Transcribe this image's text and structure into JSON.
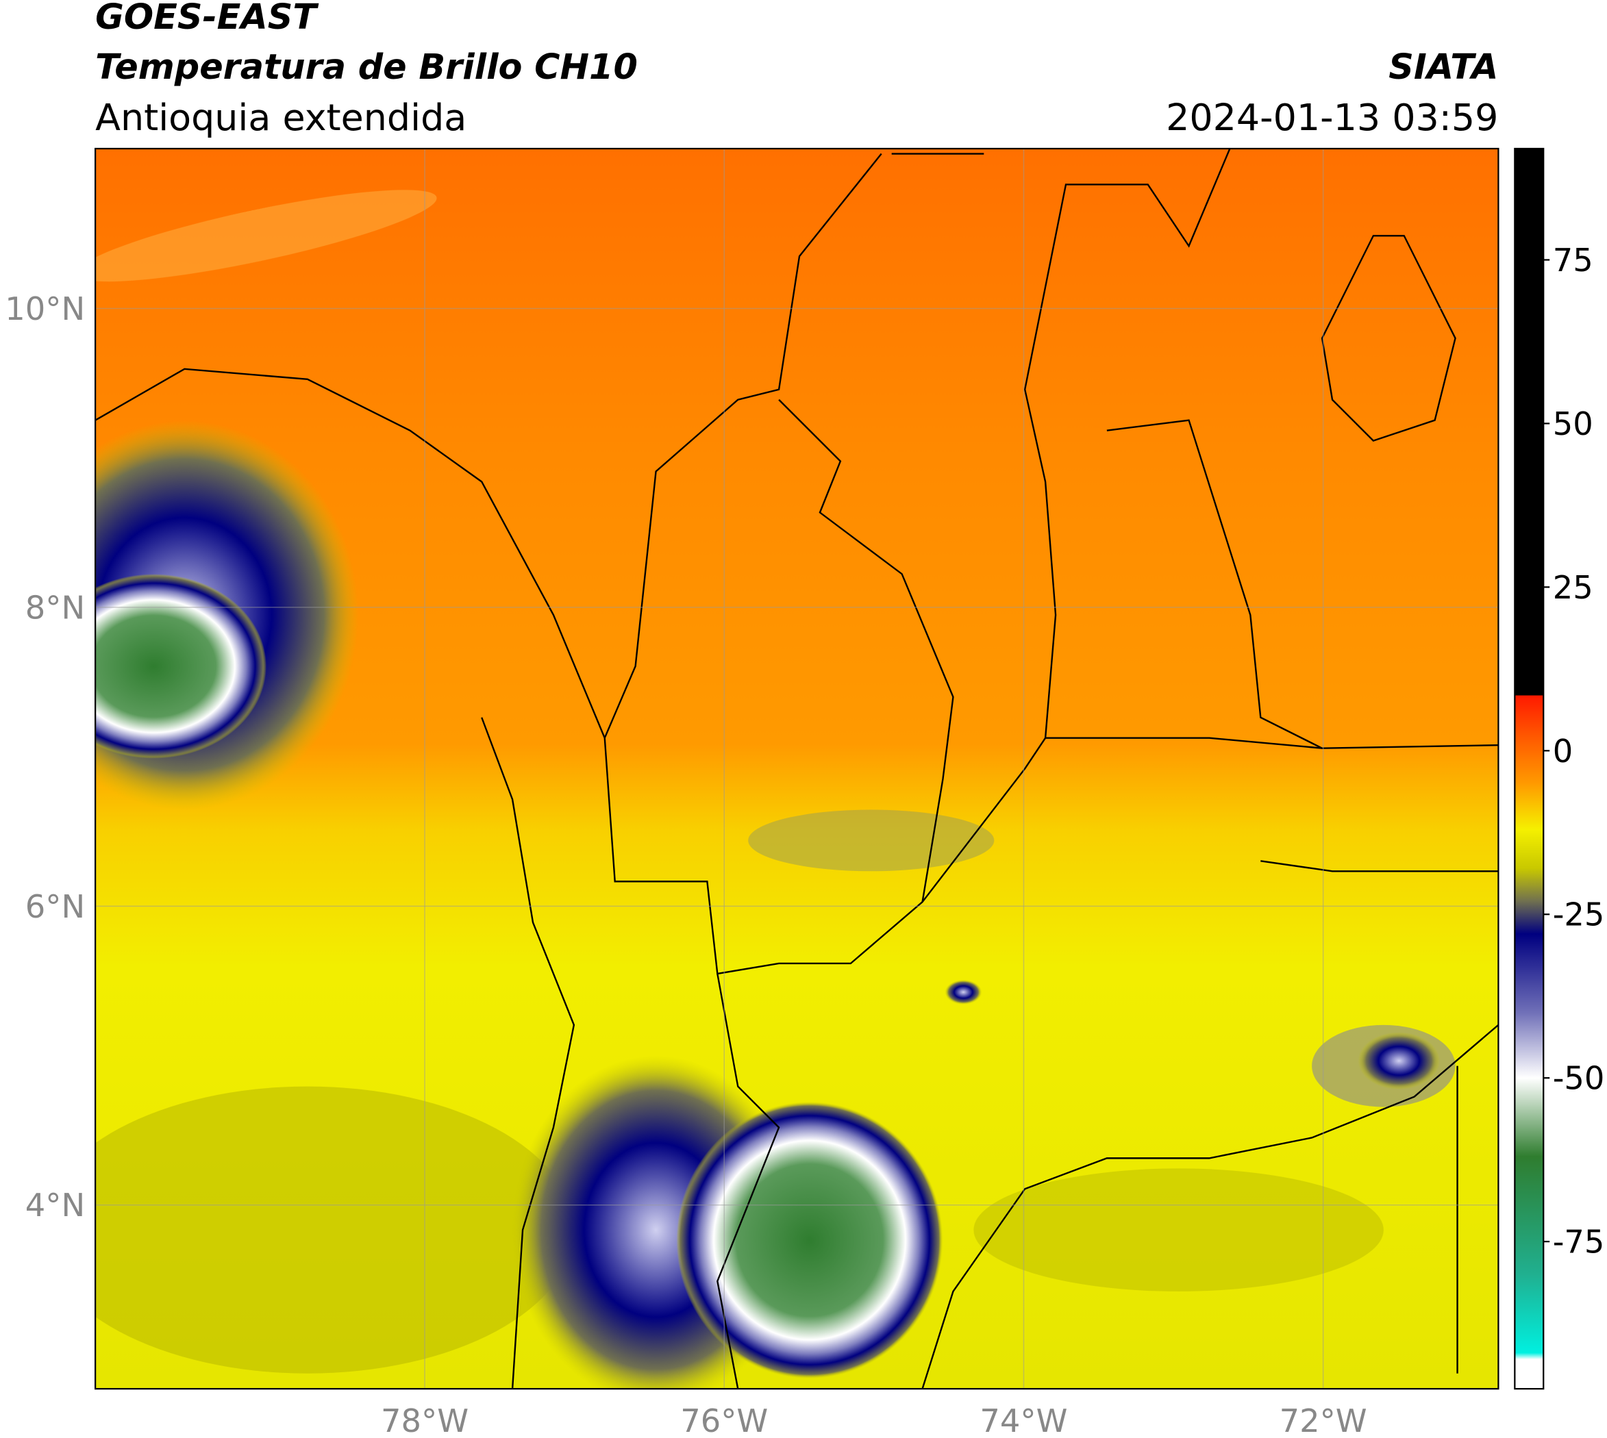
{
  "header": {
    "source": "GOES-EAST",
    "title": "Temperatura de Brillo CH10",
    "region": "Antioquia extendida",
    "agency": "SIATA",
    "timestamp": "2024-01-13 03:59"
  },
  "map": {
    "xlim": [
      -80.2,
      -70.83
    ],
    "ylim": [
      2.77,
      11.07
    ],
    "xticks": [
      {
        "value": -78,
        "label": "78°W"
      },
      {
        "value": -76,
        "label": "76°W"
      },
      {
        "value": -74,
        "label": "74°W"
      },
      {
        "value": -72,
        "label": "72°W"
      }
    ],
    "yticks": [
      {
        "value": 4,
        "label": "4°N"
      },
      {
        "value": 6,
        "label": "6°N"
      },
      {
        "value": 8,
        "label": "8°N"
      },
      {
        "value": 10,
        "label": "10°N"
      }
    ],
    "grid": true
  },
  "colorbar": {
    "lim": [
      -97.5,
      92
    ],
    "ticks": [
      75,
      50,
      25,
      0,
      -25,
      -50,
      -75
    ],
    "stops": [
      {
        "value": 92,
        "color": "#000000"
      },
      {
        "value": 8.5,
        "color": "#000000"
      },
      {
        "value": 8.4,
        "color": "#ff1a00"
      },
      {
        "value": 2,
        "color": "#ff5a00"
      },
      {
        "value": -5,
        "color": "#ff9a00"
      },
      {
        "value": -12,
        "color": "#f5f000"
      },
      {
        "value": -18,
        "color": "#c8c800"
      },
      {
        "value": -23,
        "color": "#707050"
      },
      {
        "value": -28,
        "color": "#000080"
      },
      {
        "value": -40,
        "color": "#7070b8"
      },
      {
        "value": -50,
        "color": "#ffffff"
      },
      {
        "value": -62,
        "color": "#2f7d2f"
      },
      {
        "value": -80,
        "color": "#20b090"
      },
      {
        "value": -92,
        "color": "#00f0e0"
      },
      {
        "value": -93,
        "color": "#ffffff"
      },
      {
        "value": -97.5,
        "color": "#ffffff"
      }
    ]
  }
}
